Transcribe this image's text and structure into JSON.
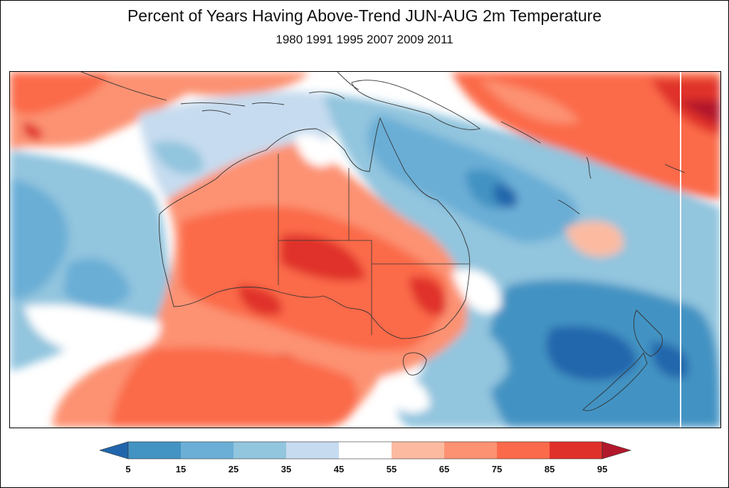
{
  "title": "Percent of Years Having Above-Trend JUN-AUG 2m Temperature",
  "subtitle": "1980 1991 1995 2007 2009 2011",
  "colorbar": {
    "ticks": [
      "5",
      "15",
      "25",
      "35",
      "45",
      "55",
      "65",
      "75",
      "85",
      "95"
    ],
    "colors": [
      "#2166ac",
      "#4393c3",
      "#6baed6",
      "#92c5de",
      "#c6dbef",
      "#ffffff",
      "#fcbba1",
      "#fc9272",
      "#fb6a4a",
      "#e0302a",
      "#b2182b"
    ]
  },
  "map": {
    "region": "Australia and surrounding ocean",
    "features": [
      "Australia",
      "Tasmania",
      "New Zealand",
      "New Guinea",
      "Indonesia"
    ]
  }
}
